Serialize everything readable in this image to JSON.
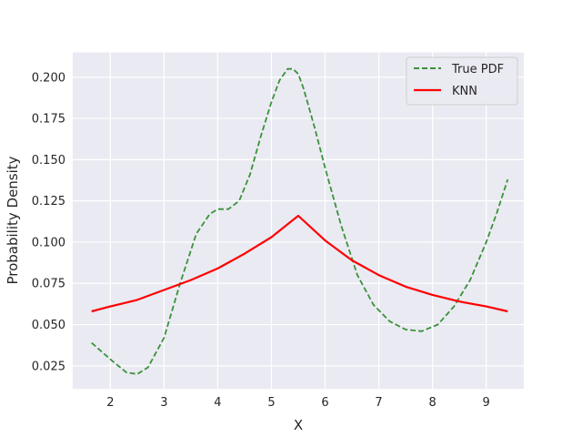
{
  "chart_data": {
    "type": "line",
    "title": "",
    "xlabel": "X",
    "ylabel": "Probability Density",
    "xlim": [
      1.3,
      9.7
    ],
    "ylim": [
      0.011,
      0.215
    ],
    "xticks": [
      2,
      3,
      4,
      5,
      6,
      7,
      8,
      9
    ],
    "yticks": [
      0.025,
      0.05,
      0.075,
      0.1,
      0.125,
      0.15,
      0.175,
      0.2
    ],
    "ytick_labels": [
      "0.025",
      "0.050",
      "0.075",
      "0.100",
      "0.125",
      "0.150",
      "0.175",
      "0.200"
    ],
    "grid": true,
    "background": "#eaeaf2",
    "legend": {
      "placement": "top-right"
    },
    "series": [
      {
        "name": "True PDF",
        "color": "#3a923a",
        "style": "dashed",
        "x": [
          1.65,
          2.0,
          2.3,
          2.5,
          2.7,
          3.0,
          3.3,
          3.6,
          3.85,
          4.0,
          4.2,
          4.4,
          4.6,
          4.8,
          5.0,
          5.15,
          5.3,
          5.4,
          5.5,
          5.6,
          5.8,
          6.0,
          6.3,
          6.6,
          6.9,
          7.2,
          7.5,
          7.8,
          8.1,
          8.4,
          8.7,
          9.0,
          9.2,
          9.4
        ],
        "y": [
          0.039,
          0.029,
          0.021,
          0.02,
          0.024,
          0.042,
          0.075,
          0.105,
          0.117,
          0.12,
          0.12,
          0.125,
          0.141,
          0.164,
          0.185,
          0.198,
          0.205,
          0.205,
          0.202,
          0.193,
          0.17,
          0.145,
          0.11,
          0.08,
          0.062,
          0.052,
          0.047,
          0.046,
          0.05,
          0.061,
          0.077,
          0.1,
          0.118,
          0.138
        ]
      },
      {
        "name": "KNN",
        "color": "#ff0000",
        "style": "solid",
        "x": [
          1.65,
          2.0,
          2.5,
          3.0,
          3.5,
          4.0,
          4.5,
          5.0,
          5.5,
          6.0,
          6.5,
          7.0,
          7.5,
          8.0,
          8.5,
          9.0,
          9.4
        ],
        "y": [
          0.058,
          0.061,
          0.065,
          0.071,
          0.077,
          0.084,
          0.093,
          0.103,
          0.116,
          0.101,
          0.089,
          0.08,
          0.073,
          0.068,
          0.064,
          0.061,
          0.058
        ]
      }
    ]
  }
}
